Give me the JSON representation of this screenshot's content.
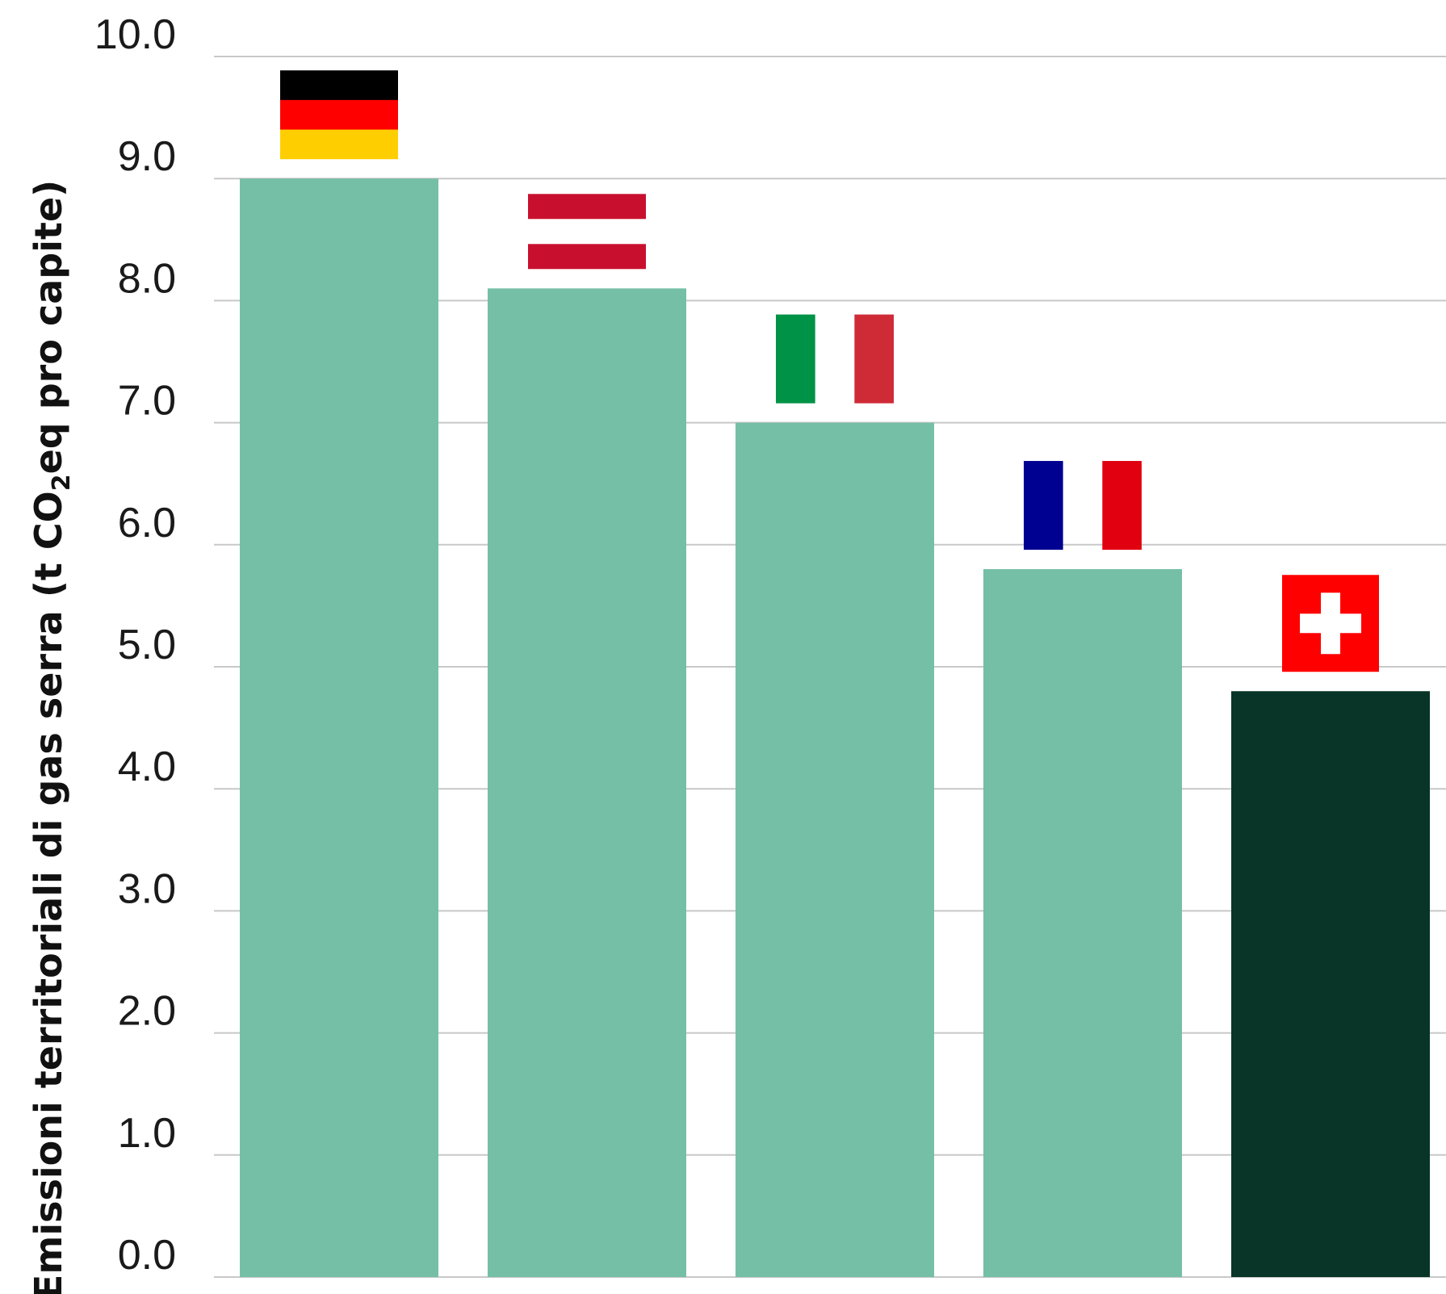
{
  "chart_data": {
    "type": "bar",
    "ylabel_parts": [
      "Emissioni territoriali di gas serra (t CO",
      "2",
      "eq pro capite)"
    ],
    "ylim": [
      0,
      10
    ],
    "yticks": [
      "0.0",
      "1.0",
      "2.0",
      "3.0",
      "4.0",
      "5.0",
      "6.0",
      "7.0",
      "8.0",
      "9.0",
      "10.0"
    ],
    "grid": true,
    "bars": [
      {
        "flag": "germany-flag-icon",
        "value": 9.0,
        "color": "#75bfa6"
      },
      {
        "flag": "austria-flag-icon",
        "value": 8.1,
        "color": "#75bfa6"
      },
      {
        "flag": "italy-flag-icon",
        "value": 7.0,
        "color": "#75bfa6"
      },
      {
        "flag": "france-flag-icon",
        "value": 5.8,
        "color": "#75bfa6"
      },
      {
        "flag": "switzerland-flag-icon",
        "value": 4.8,
        "color": "#083527"
      }
    ]
  }
}
